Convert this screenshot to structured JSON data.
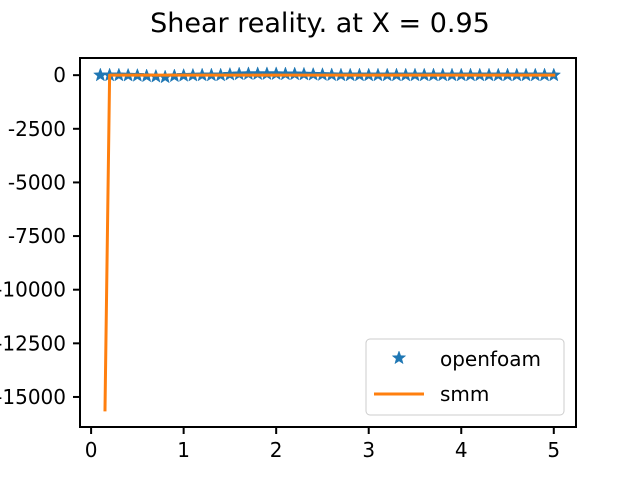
{
  "chart_data": {
    "type": "line",
    "title": "Shear reality. at X = 0.95",
    "xlabel": "",
    "ylabel": "",
    "xlim": [
      -0.12,
      5.24
    ],
    "ylim": [
      -16400,
      800
    ],
    "xticks": [
      0,
      1,
      2,
      3,
      4,
      5
    ],
    "xtick_labels": [
      "0",
      "1",
      "2",
      "3",
      "4",
      "5"
    ],
    "yticks": [
      0,
      -2500,
      -5000,
      -7500,
      -10000,
      -12500,
      -15000
    ],
    "ytick_labels": [
      "0",
      "-2500",
      "-5000",
      "-7500",
      "-10000",
      "-12500",
      "-15000"
    ],
    "grid": false,
    "legend_position": "lower-right",
    "series": [
      {
        "name": "openfoam",
        "style": "star-markers",
        "color": "#1f77b4",
        "x": [
          0.1,
          0.2,
          0.3,
          0.4,
          0.5,
          0.6,
          0.7,
          0.8,
          0.9,
          1.0,
          1.1,
          1.2,
          1.3,
          1.4,
          1.5,
          1.6,
          1.7,
          1.8,
          1.9,
          2.0,
          2.1,
          2.2,
          2.3,
          2.4,
          2.5,
          2.6,
          2.7,
          2.8,
          2.9,
          3.0,
          3.1,
          3.2,
          3.3,
          3.4,
          3.5,
          3.6,
          3.7,
          3.8,
          3.9,
          4.0,
          4.1,
          4.2,
          4.3,
          4.4,
          4.5,
          4.6,
          4.7,
          4.8,
          4.9,
          5.0
        ],
        "y": [
          0,
          0,
          0,
          -10,
          -20,
          -40,
          -60,
          -90,
          -40,
          -20,
          -10,
          0,
          0,
          0,
          30,
          50,
          60,
          60,
          60,
          60,
          50,
          50,
          40,
          30,
          20,
          10,
          0,
          0,
          0,
          0,
          0,
          0,
          0,
          0,
          0,
          0,
          0,
          0,
          0,
          0,
          0,
          0,
          0,
          0,
          0,
          0,
          0,
          0,
          0,
          0
        ]
      },
      {
        "name": "smm",
        "style": "line",
        "color": "#ff7f0e",
        "x": [
          0.15,
          0.2,
          0.3,
          0.5,
          1.0,
          1.5,
          2.0,
          2.5,
          3.0,
          3.5,
          4.0,
          4.5,
          5.0
        ],
        "y": [
          -15600,
          0,
          0,
          0,
          0,
          0,
          0,
          0,
          0,
          0,
          0,
          0,
          0
        ]
      }
    ]
  }
}
